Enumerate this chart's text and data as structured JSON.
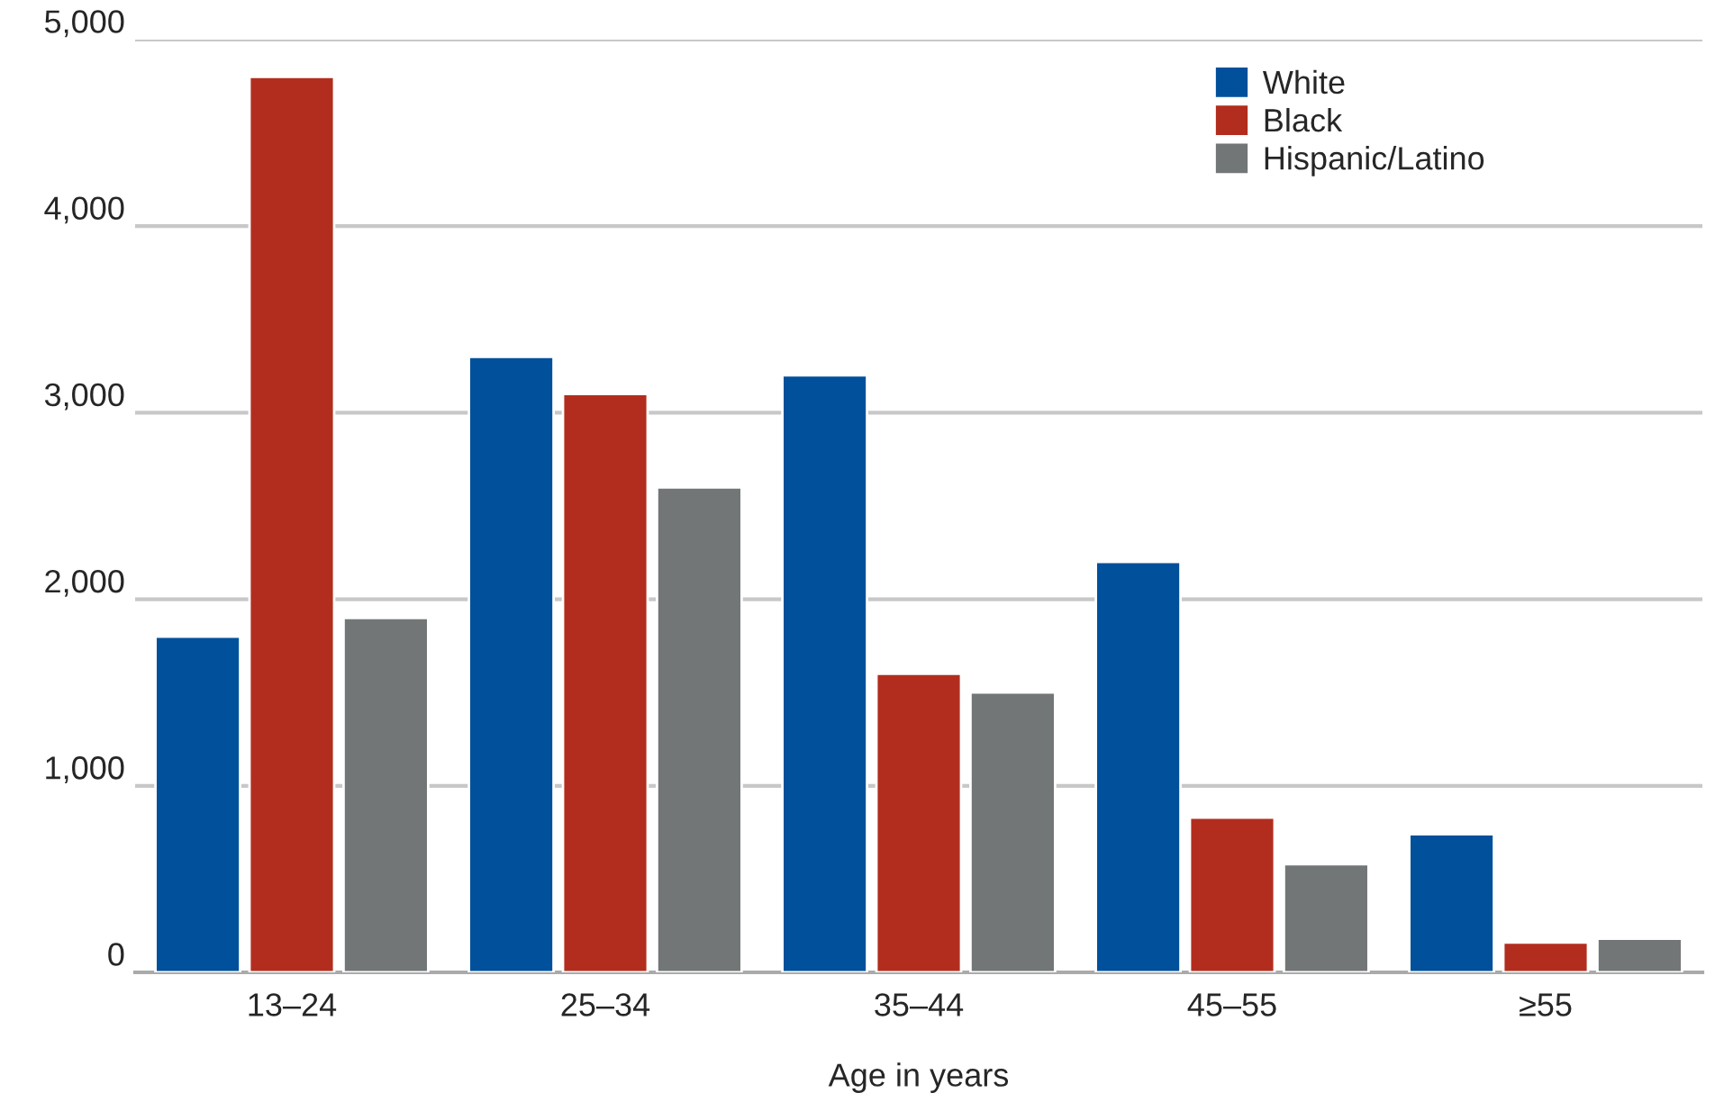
{
  "chart_data": {
    "type": "bar",
    "xlabel": "Age in years",
    "categories": [
      "13–24",
      "25–34",
      "35–44",
      "45–55",
      "≥55"
    ],
    "series": [
      {
        "name": "White",
        "color": "#00509b",
        "values": [
          1800,
          3300,
          3200,
          2200,
          740
        ]
      },
      {
        "name": "Black",
        "color": "#b22d1e",
        "values": [
          4800,
          3100,
          1600,
          830,
          160
        ]
      },
      {
        "name": "Hispanic/Latino",
        "color": "#737677",
        "values": [
          1900,
          2600,
          1500,
          580,
          180
        ]
      }
    ],
    "ylim": [
      0,
      5000
    ],
    "yticks": [
      0,
      {
        "value": 1000,
        "label": "1,000"
      },
      {
        "value": 2000,
        "label": "2,000"
      },
      {
        "value": 3000,
        "label": "3,000"
      },
      {
        "value": 4000,
        "label": "4,000"
      },
      {
        "value": 5000,
        "label": "5,000"
      }
    ],
    "grid": "y",
    "legend": "top right"
  }
}
